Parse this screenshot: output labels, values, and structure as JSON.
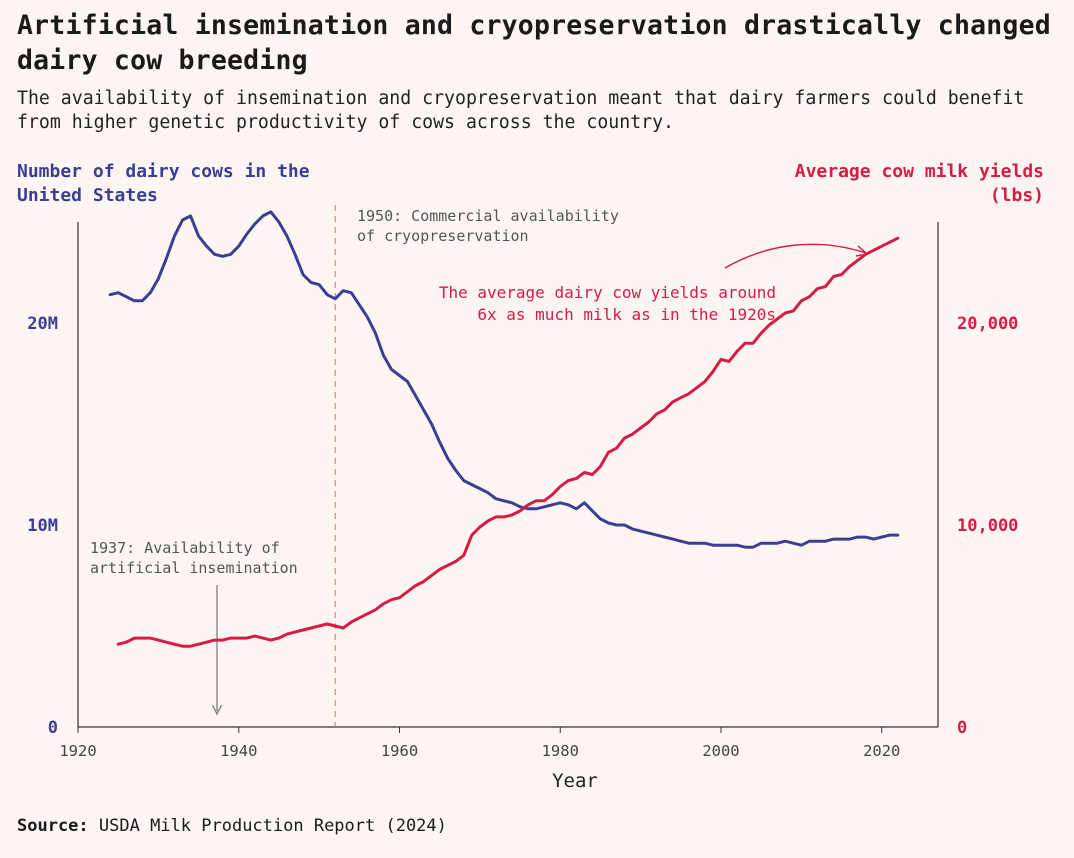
{
  "title": "Artificial insemination and cryopreservation drastically changed dairy cow breeding",
  "subtitle": "The availability of insemination and cryopreservation meant that dairy farmers could benefit from higher genetic productivity of cows across the country.",
  "source_label": "Source:",
  "source_text": "USDA Milk Production Report (2024)",
  "chart_data": {
    "type": "line",
    "xlabel": "Year",
    "ylabel_left": "Number of dairy cows in the United States",
    "ylabel_right": "Average cow milk yields (lbs)",
    "xlim": [
      1920,
      2027
    ],
    "x_ticks": [
      "1920",
      "1940",
      "1960",
      "1980",
      "2000",
      "2020"
    ],
    "left_ylim": [
      0,
      25000000
    ],
    "left_ticks": [
      {
        "value": 0,
        "label": "0"
      },
      {
        "value": 10000000,
        "label": "10M"
      },
      {
        "value": 20000000,
        "label": "20M"
      }
    ],
    "right_ylim": [
      0,
      25000
    ],
    "right_ticks": [
      {
        "value": 0,
        "label": "0"
      },
      {
        "value": 10000,
        "label": "10,000"
      },
      {
        "value": 20000,
        "label": "20,000"
      }
    ],
    "colors": {
      "cows": "#3b3f94",
      "milk": "#d81b46",
      "axis": "#333333",
      "annotation": "#888888"
    },
    "series": [
      {
        "name": "Number of dairy cows in the United States",
        "axis": "left",
        "x": [
          1924,
          1925,
          1926,
          1927,
          1928,
          1929,
          1930,
          1931,
          1932,
          1933,
          1934,
          1935,
          1936,
          1937,
          1938,
          1939,
          1940,
          1941,
          1942,
          1943,
          1944,
          1945,
          1946,
          1947,
          1948,
          1949,
          1950,
          1951,
          1952,
          1953,
          1954,
          1955,
          1956,
          1957,
          1958,
          1959,
          1960,
          1961,
          1962,
          1963,
          1964,
          1965,
          1966,
          1967,
          1968,
          1969,
          1970,
          1971,
          1972,
          1973,
          1974,
          1975,
          1976,
          1977,
          1978,
          1979,
          1980,
          1981,
          1982,
          1983,
          1984,
          1985,
          1986,
          1987,
          1988,
          1989,
          1990,
          1991,
          1992,
          1993,
          1994,
          1995,
          1996,
          1997,
          1998,
          1999,
          2000,
          2001,
          2002,
          2003,
          2004,
          2005,
          2006,
          2007,
          2008,
          2009,
          2010,
          2011,
          2012,
          2013,
          2014,
          2015,
          2016,
          2017,
          2018,
          2019,
          2020,
          2021,
          2022
        ],
        "values": [
          21400000,
          21500000,
          21300000,
          21100000,
          21100000,
          21500000,
          22200000,
          23200000,
          24300000,
          25100000,
          25300000,
          24300000,
          23800000,
          23400000,
          23300000,
          23400000,
          23800000,
          24400000,
          24900000,
          25300000,
          25500000,
          25000000,
          24300000,
          23400000,
          22400000,
          22000000,
          21900000,
          21400000,
          21200000,
          21600000,
          21500000,
          20900000,
          20300000,
          19500000,
          18400000,
          17700000,
          17400000,
          17100000,
          16400000,
          15700000,
          15000000,
          14100000,
          13300000,
          12700000,
          12200000,
          12000000,
          11800000,
          11600000,
          11300000,
          11200000,
          11100000,
          10900000,
          10800000,
          10800000,
          10900000,
          11000000,
          11100000,
          11000000,
          10800000,
          11100000,
          10700000,
          10300000,
          10100000,
          10000000,
          10000000,
          9800000,
          9700000,
          9600000,
          9500000,
          9400000,
          9300000,
          9200000,
          9100000,
          9100000,
          9100000,
          9000000,
          9000000,
          9000000,
          9000000,
          8900000,
          8900000,
          9100000,
          9100000,
          9100000,
          9200000,
          9100000,
          9000000,
          9200000,
          9200000,
          9200000,
          9300000,
          9300000,
          9300000,
          9400000,
          9400000,
          9300000,
          9400000,
          9500000,
          9500000
        ]
      },
      {
        "name": "Average cow milk yields (lbs)",
        "axis": "right",
        "x": [
          1925,
          1926,
          1927,
          1928,
          1929,
          1930,
          1931,
          1932,
          1933,
          1934,
          1935,
          1936,
          1937,
          1938,
          1939,
          1940,
          1941,
          1942,
          1943,
          1944,
          1945,
          1946,
          1947,
          1948,
          1949,
          1950,
          1951,
          1952,
          1953,
          1954,
          1955,
          1956,
          1957,
          1958,
          1959,
          1960,
          1961,
          1962,
          1963,
          1964,
          1965,
          1966,
          1967,
          1968,
          1969,
          1970,
          1971,
          1972,
          1973,
          1974,
          1975,
          1976,
          1977,
          1978,
          1979,
          1980,
          1981,
          1982,
          1983,
          1984,
          1985,
          1986,
          1987,
          1988,
          1989,
          1990,
          1991,
          1992,
          1993,
          1994,
          1995,
          1996,
          1997,
          1998,
          1999,
          2000,
          2001,
          2002,
          2003,
          2004,
          2005,
          2006,
          2007,
          2008,
          2009,
          2010,
          2011,
          2012,
          2013,
          2014,
          2015,
          2016,
          2017,
          2018,
          2019,
          2020,
          2021,
          2022
        ],
        "values": [
          4100,
          4200,
          4400,
          4400,
          4400,
          4300,
          4200,
          4100,
          4000,
          4000,
          4100,
          4200,
          4300,
          4300,
          4400,
          4400,
          4400,
          4500,
          4400,
          4300,
          4400,
          4600,
          4700,
          4800,
          4900,
          5000,
          5100,
          5000,
          4900,
          5200,
          5400,
          5600,
          5800,
          6100,
          6300,
          6400,
          6700,
          7000,
          7200,
          7500,
          7800,
          8000,
          8200,
          8500,
          9500,
          9900,
          10200,
          10400,
          10400,
          10500,
          10700,
          11000,
          11200,
          11200,
          11500,
          11900,
          12200,
          12300,
          12600,
          12500,
          12900,
          13600,
          13800,
          14300,
          14500,
          14800,
          15100,
          15500,
          15700,
          16100,
          16300,
          16500,
          16800,
          17100,
          17600,
          18200,
          18100,
          18600,
          19000,
          19000,
          19500,
          19900,
          20200,
          20500,
          20600,
          21100,
          21300,
          21700,
          21800,
          22300,
          22400,
          22800,
          23100,
          23400,
          23600,
          23800,
          24000,
          24200
        ]
      }
    ],
    "annotations": [
      {
        "x": 1950,
        "text": "1950: Commercial availability of cryopreservation",
        "lines": [
          "1950: Commercial availability",
          "of cryopreservation"
        ]
      },
      {
        "x": 1937,
        "text": "1937: Availability of artificial insemination",
        "lines": [
          "1937: Availability of",
          "artificial insemination"
        ]
      },
      {
        "text": "The average dairy cow yields around 6x as much milk as in the 1920s",
        "lines": [
          "The average dairy cow yields around",
          "6x as much milk as in the 1920s"
        ]
      }
    ]
  }
}
